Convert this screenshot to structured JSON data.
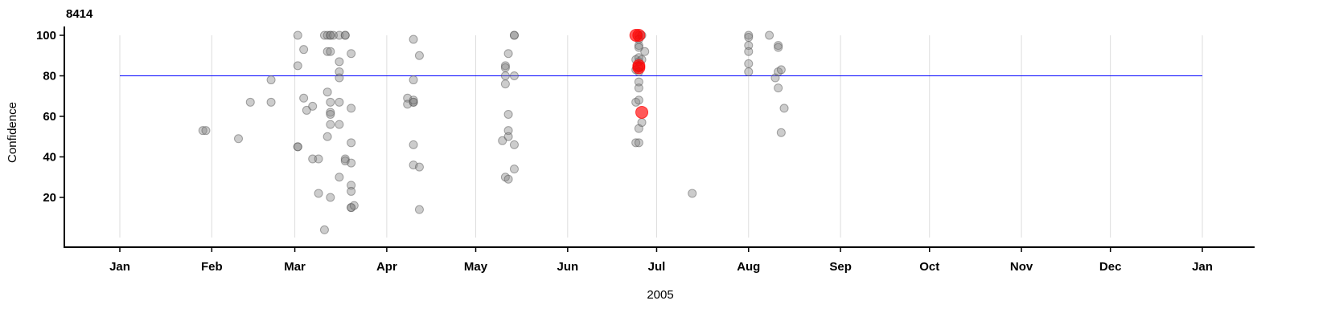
{
  "chart_data": {
    "type": "scatter",
    "title": "8414",
    "xlabel": "2005",
    "ylabel": "Confidence",
    "xlim": [
      "2005-01-01",
      "2006-01-01"
    ],
    "ylim": [
      0,
      100
    ],
    "x_tick_labels": [
      "Jan",
      "Feb",
      "Mar",
      "Apr",
      "May",
      "Jun",
      "Jul",
      "Aug",
      "Sep",
      "Oct",
      "Nov",
      "Dec",
      "Jan"
    ],
    "x_tick_dates": [
      "2005-01-01",
      "2005-02-01",
      "2005-03-01",
      "2005-04-01",
      "2005-05-01",
      "2005-06-01",
      "2005-07-01",
      "2005-08-01",
      "2005-09-01",
      "2005-10-01",
      "2005-11-01",
      "2005-12-01",
      "2006-01-01"
    ],
    "y_ticks": [
      20,
      40,
      60,
      80,
      100
    ],
    "threshold": 80,
    "grid": "vertical",
    "colors": {
      "point": "#808080",
      "highlight": "#ff0000",
      "threshold": "#0000ff",
      "grid": "#dddddd"
    },
    "points": [
      [
        "2005-01-29",
        53,
        0
      ],
      [
        "2005-01-30",
        53,
        0
      ],
      [
        "2005-02-10",
        49,
        0
      ],
      [
        "2005-02-14",
        67,
        0
      ],
      [
        "2005-02-21",
        78,
        0
      ],
      [
        "2005-02-21",
        67,
        0
      ],
      [
        "2005-03-02",
        100,
        0
      ],
      [
        "2005-03-02",
        85,
        0
      ],
      [
        "2005-03-02",
        45,
        0
      ],
      [
        "2005-03-02",
        45,
        0
      ],
      [
        "2005-03-04",
        93,
        0
      ],
      [
        "2005-03-04",
        69,
        0
      ],
      [
        "2005-03-05",
        63,
        0
      ],
      [
        "2005-03-07",
        65,
        0
      ],
      [
        "2005-03-07",
        39,
        0
      ],
      [
        "2005-03-09",
        39,
        0
      ],
      [
        "2005-03-09",
        22,
        0
      ],
      [
        "2005-03-11",
        100,
        0
      ],
      [
        "2005-03-11",
        4,
        0
      ],
      [
        "2005-03-12",
        72,
        0
      ],
      [
        "2005-03-12",
        50,
        0
      ],
      [
        "2005-03-12",
        92,
        0
      ],
      [
        "2005-03-13",
        92,
        0
      ],
      [
        "2005-03-12",
        100,
        0
      ],
      [
        "2005-03-13",
        100,
        0
      ],
      [
        "2005-03-13",
        100,
        0
      ],
      [
        "2005-03-13",
        67,
        0
      ],
      [
        "2005-03-13",
        62,
        0
      ],
      [
        "2005-03-13",
        61,
        0
      ],
      [
        "2005-03-13",
        56,
        0
      ],
      [
        "2005-03-13",
        20,
        0
      ],
      [
        "2005-03-14",
        100,
        0
      ],
      [
        "2005-03-16",
        100,
        0
      ],
      [
        "2005-03-16",
        87,
        0
      ],
      [
        "2005-03-16",
        82,
        0
      ],
      [
        "2005-03-16",
        79,
        0
      ],
      [
        "2005-03-16",
        67,
        0
      ],
      [
        "2005-03-16",
        56,
        0
      ],
      [
        "2005-03-16",
        30,
        0
      ],
      [
        "2005-03-18",
        100,
        0
      ],
      [
        "2005-03-18",
        100,
        0
      ],
      [
        "2005-03-18",
        39,
        0
      ],
      [
        "2005-03-18",
        38,
        0
      ],
      [
        "2005-03-20",
        91,
        0
      ],
      [
        "2005-03-20",
        64,
        0
      ],
      [
        "2005-03-20",
        47,
        0
      ],
      [
        "2005-03-20",
        37,
        0
      ],
      [
        "2005-03-20",
        26,
        0
      ],
      [
        "2005-03-20",
        23,
        0
      ],
      [
        "2005-03-20",
        15,
        0
      ],
      [
        "2005-03-20",
        15,
        0
      ],
      [
        "2005-03-21",
        16,
        0
      ],
      [
        "2005-04-08",
        69,
        0
      ],
      [
        "2005-04-08",
        66,
        0
      ],
      [
        "2005-04-10",
        98,
        0
      ],
      [
        "2005-04-10",
        78,
        0
      ],
      [
        "2005-04-10",
        67,
        0
      ],
      [
        "2005-04-10",
        67,
        0
      ],
      [
        "2005-04-10",
        68,
        0
      ],
      [
        "2005-04-10",
        46,
        0
      ],
      [
        "2005-04-10",
        36,
        0
      ],
      [
        "2005-04-12",
        90,
        0
      ],
      [
        "2005-04-12",
        35,
        0
      ],
      [
        "2005-04-12",
        14,
        0
      ],
      [
        "2005-05-10",
        48,
        0
      ],
      [
        "2005-05-11",
        85,
        0
      ],
      [
        "2005-05-11",
        84,
        0
      ],
      [
        "2005-05-11",
        80,
        0
      ],
      [
        "2005-05-11",
        76,
        0
      ],
      [
        "2005-05-11",
        30,
        0
      ],
      [
        "2005-05-12",
        91,
        0
      ],
      [
        "2005-05-12",
        61,
        0
      ],
      [
        "2005-05-12",
        53,
        0
      ],
      [
        "2005-05-12",
        50,
        0
      ],
      [
        "2005-05-12",
        29,
        0
      ],
      [
        "2005-05-14",
        100,
        0
      ],
      [
        "2005-05-14",
        100,
        0
      ],
      [
        "2005-05-14",
        80,
        0
      ],
      [
        "2005-05-14",
        46,
        0
      ],
      [
        "2005-05-14",
        34,
        0
      ],
      [
        "2005-06-24",
        88,
        0
      ],
      [
        "2005-06-24",
        83,
        0
      ],
      [
        "2005-06-24",
        67,
        0
      ],
      [
        "2005-06-24",
        47,
        0
      ],
      [
        "2005-06-25",
        100,
        0
      ],
      [
        "2005-06-25",
        98,
        0
      ],
      [
        "2005-06-25",
        95,
        0
      ],
      [
        "2005-06-25",
        94,
        0
      ],
      [
        "2005-06-25",
        89,
        0
      ],
      [
        "2005-06-25",
        87,
        0
      ],
      [
        "2005-06-25",
        84,
        0
      ],
      [
        "2005-06-25",
        82,
        0
      ],
      [
        "2005-06-25",
        77,
        0
      ],
      [
        "2005-06-25",
        74,
        0
      ],
      [
        "2005-06-25",
        68,
        0
      ],
      [
        "2005-06-25",
        54,
        0
      ],
      [
        "2005-06-25",
        47,
        0
      ],
      [
        "2005-06-26",
        100,
        0
      ],
      [
        "2005-06-26",
        88,
        0
      ],
      [
        "2005-06-26",
        57,
        0
      ],
      [
        "2005-06-27",
        92,
        0
      ],
      [
        "2005-06-24",
        100,
        1
      ],
      [
        "2005-06-25",
        100,
        1
      ],
      [
        "2005-06-25",
        85,
        1
      ],
      [
        "2005-06-25",
        84,
        1
      ],
      [
        "2005-06-26",
        62,
        1
      ],
      [
        "2005-07-13",
        22,
        0
      ],
      [
        "2005-08-01",
        100,
        0
      ],
      [
        "2005-08-01",
        99,
        0
      ],
      [
        "2005-08-01",
        95,
        0
      ],
      [
        "2005-08-01",
        92,
        0
      ],
      [
        "2005-08-01",
        86,
        0
      ],
      [
        "2005-08-01",
        82,
        0
      ],
      [
        "2005-08-08",
        100,
        0
      ],
      [
        "2005-08-10",
        79,
        0
      ],
      [
        "2005-08-11",
        95,
        0
      ],
      [
        "2005-08-11",
        94,
        0
      ],
      [
        "2005-08-11",
        82,
        0
      ],
      [
        "2005-08-11",
        74,
        0
      ],
      [
        "2005-08-12",
        83,
        0
      ],
      [
        "2005-08-13",
        64,
        0
      ],
      [
        "2005-08-12",
        52,
        0
      ]
    ]
  }
}
